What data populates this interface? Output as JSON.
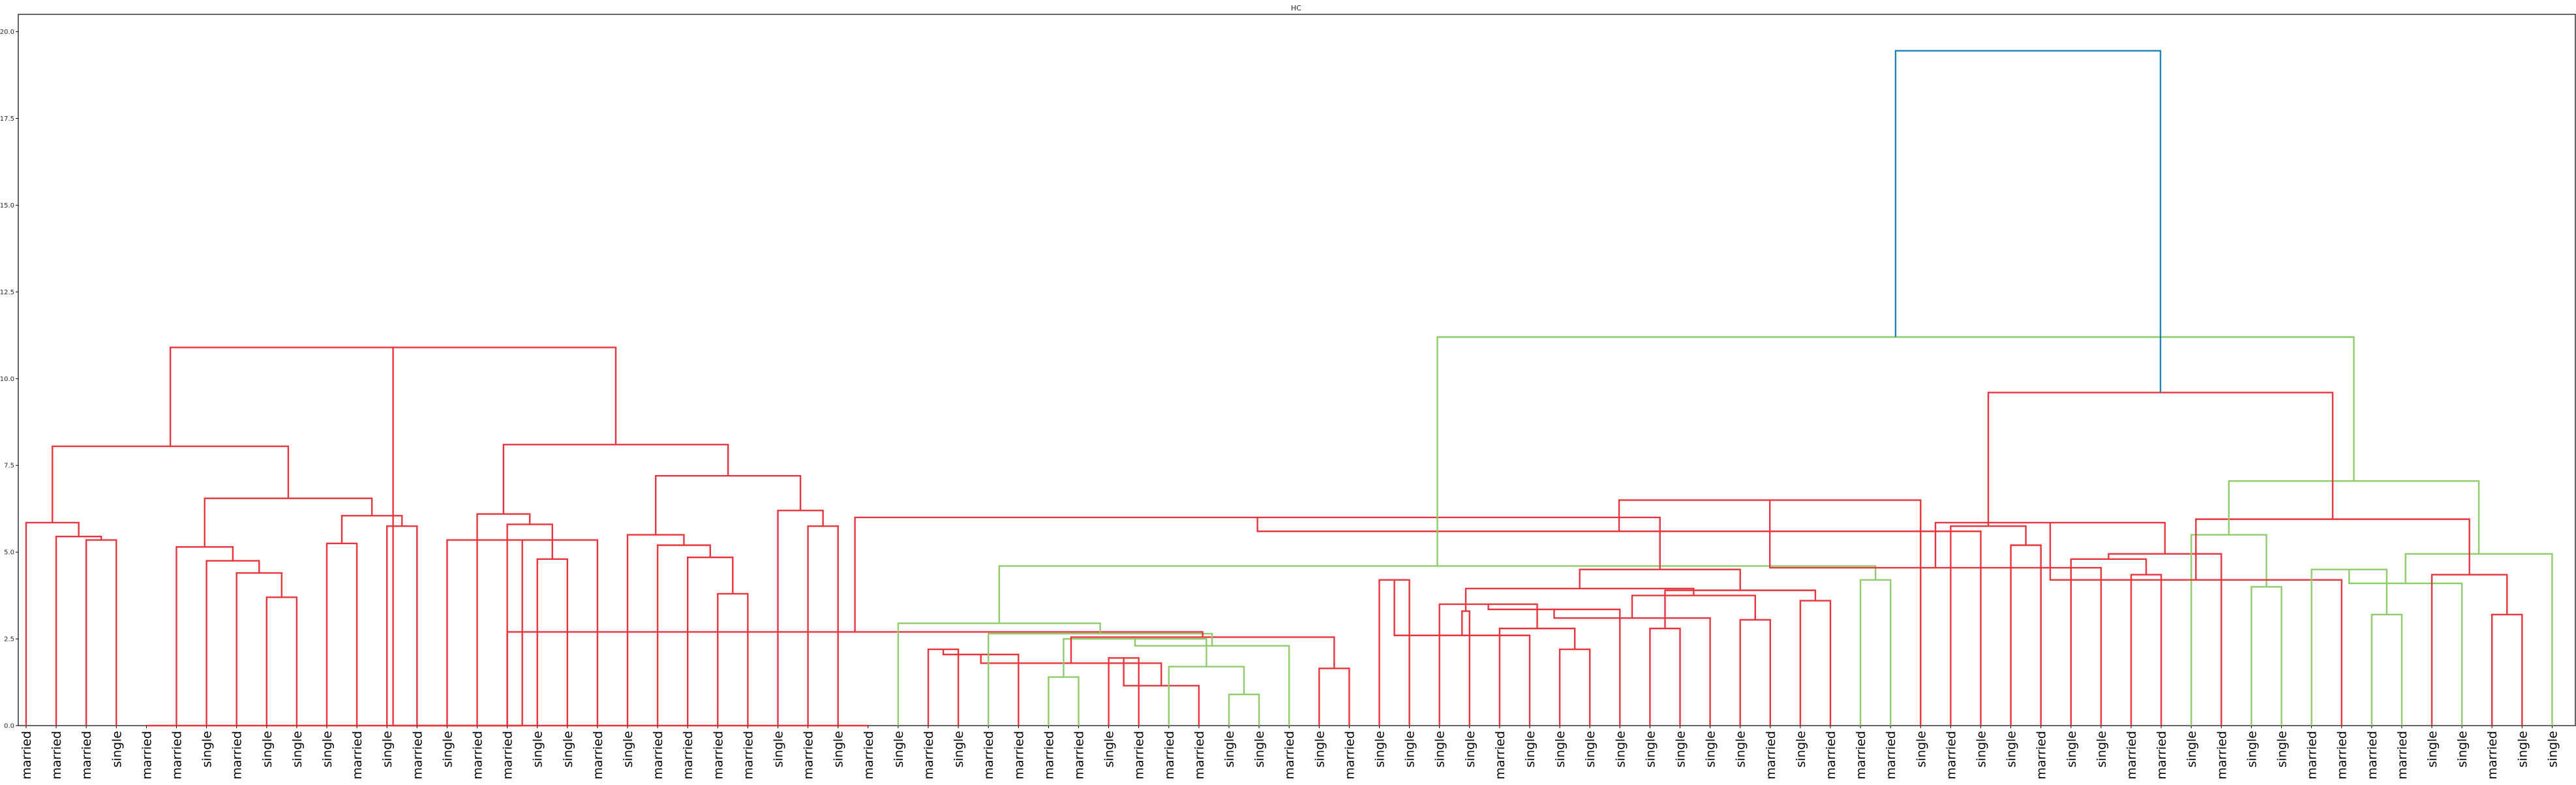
{
  "chart_data": {
    "type": "dendrogram",
    "title": "HC",
    "xlabel": "",
    "ylabel": "",
    "ylim": [
      0,
      20.5
    ],
    "yticks": [
      "0.0",
      "2.5",
      "5.0",
      "7.5",
      "10.0",
      "12.5",
      "15.0",
      "17.5",
      "20.0"
    ],
    "ytick_values": [
      0,
      2.5,
      5,
      7.5,
      10,
      12.5,
      15,
      17.5,
      20
    ],
    "grid": false,
    "leaf_labels": [
      "married",
      "married",
      "married",
      "single",
      "married",
      "married",
      "single",
      "married",
      "single",
      "single",
      "single",
      "married",
      "single",
      "married",
      "single",
      "married",
      "married",
      "single",
      "single",
      "married",
      "single",
      "married",
      "married",
      "married",
      "married",
      "single",
      "married",
      "single",
      "married",
      "single",
      "married",
      "single",
      "married",
      "married",
      "married",
      "married",
      "single",
      "married",
      "married",
      "married",
      "single",
      "single",
      "married",
      "single",
      "married",
      "single",
      "single",
      "single",
      "single",
      "married",
      "single",
      "single",
      "single",
      "single",
      "single",
      "single",
      "single",
      "single",
      "married",
      "single",
      "married",
      "married",
      "married",
      "single",
      "married",
      "single",
      "single",
      "married",
      "single",
      "single",
      "married",
      "married",
      "single",
      "married",
      "single",
      "single",
      "married",
      "married",
      "married",
      "married",
      "single",
      "single",
      "married",
      "single",
      "single"
    ],
    "colors": {
      "cluster_1": "#8fcc6b",
      "cluster_2": "#e8343c",
      "root": "#1f84b8"
    },
    "merges": [
      {
        "a": 2,
        "b": 3,
        "height": 5.35
      },
      {
        "a": 1,
        "b": 85,
        "height": 5.45
      },
      {
        "a": 0,
        "b": 86,
        "height": 5.85
      },
      {
        "a": 8,
        "b": 9,
        "height": 3.7
      },
      {
        "a": 7,
        "b": 88,
        "height": 4.4
      },
      {
        "a": 6,
        "b": 89,
        "height": 4.75
      },
      {
        "a": 5,
        "b": 90,
        "height": 5.15
      },
      {
        "a": 10,
        "b": 11,
        "height": 5.25
      },
      {
        "a": 12,
        "b": 13,
        "height": 5.75
      },
      {
        "a": 92,
        "b": 93,
        "height": 6.05
      },
      {
        "a": 91,
        "b": 94,
        "height": 6.55
      },
      {
        "a": 87,
        "b": 95,
        "height": 8.05
      },
      {
        "a": 17,
        "b": 18,
        "height": 4.8
      },
      {
        "a": 16,
        "b": 97,
        "height": 5.8
      },
      {
        "a": 15,
        "b": 98,
        "height": 6.1
      },
      {
        "a": 23,
        "b": 24,
        "height": 3.8
      },
      {
        "a": 22,
        "b": 100,
        "height": 4.85
      },
      {
        "a": 21,
        "b": 101,
        "height": 5.2
      },
      {
        "a": 20,
        "b": 102,
        "height": 5.5
      },
      {
        "a": 26,
        "b": 27,
        "height": 5.75
      },
      {
        "a": 25,
        "b": 104,
        "height": 6.2
      },
      {
        "a": 103,
        "b": 105,
        "height": 7.2
      },
      {
        "a": 99,
        "b": 106,
        "height": 8.1
      },
      {
        "a": 96,
        "b": 107,
        "height": 10.9
      },
      {
        "a": 14,
        "b": 19,
        "height": 5.35
      },
      {
        "a": 4,
        "b": 28,
        "height": 0.0
      },
      {
        "a": 30,
        "b": 31,
        "height": 2.2
      },
      {
        "a": 34,
        "b": 35,
        "height": 1.4
      },
      {
        "a": 33,
        "b": 111,
        "height": 2.05
      },
      {
        "a": 36,
        "b": 37,
        "height": 1.95
      },
      {
        "a": 40,
        "b": 41,
        "height": 0.9
      },
      {
        "a": 39,
        "b": 114,
        "height": 1.15
      },
      {
        "a": 38,
        "b": 115,
        "height": 1.7
      },
      {
        "a": 113,
        "b": 116,
        "height": 1.8
      },
      {
        "a": 112,
        "b": 117,
        "height": 2.5
      },
      {
        "a": 43,
        "b": 44,
        "height": 1.65
      },
      {
        "a": 42,
        "b": 119,
        "height": 2.3
      },
      {
        "a": 118,
        "b": 120,
        "height": 2.55
      },
      {
        "a": 32,
        "b": 121,
        "height": 2.65
      },
      {
        "a": 110,
        "b": 122,
        "height": 2.7
      },
      {
        "a": 29,
        "b": 123,
        "height": 2.95
      },
      {
        "a": 45,
        "b": 46,
        "height": 4.2
      },
      {
        "a": 51,
        "b": 52,
        "height": 2.2
      },
      {
        "a": 50,
        "b": 126,
        "height": 2.6
      },
      {
        "a": 49,
        "b": 127,
        "height": 2.8
      },
      {
        "a": 48,
        "b": 128,
        "height": 3.3
      },
      {
        "a": 47,
        "b": 129,
        "height": 3.5
      },
      {
        "a": 54,
        "b": 55,
        "height": 2.8
      },
      {
        "a": 53,
        "b": 131,
        "height": 3.35
      },
      {
        "a": 57,
        "b": 58,
        "height": 3.05
      },
      {
        "a": 56,
        "b": 133,
        "height": 3.1
      },
      {
        "a": 59,
        "b": 60,
        "height": 3.6
      },
      {
        "a": 134,
        "b": 135,
        "height": 3.75
      },
      {
        "a": 132,
        "b": 136,
        "height": 3.9
      },
      {
        "a": 130,
        "b": 137,
        "height": 3.95
      },
      {
        "a": 61,
        "b": 62,
        "height": 4.2
      },
      {
        "a": 138,
        "b": 139,
        "height": 4.5
      },
      {
        "a": 125,
        "b": 140,
        "height": 4.6
      },
      {
        "a": 124,
        "b": 141,
        "height": 6.0
      },
      {
        "a": 66,
        "b": 67,
        "height": 5.2
      },
      {
        "a": 65,
        "b": 143,
        "height": 5.6
      },
      {
        "a": 64,
        "b": 144,
        "height": 5.75
      },
      {
        "a": 63,
        "b": 145,
        "height": 6.5
      },
      {
        "a": 70,
        "b": 71,
        "height": 4.35
      },
      {
        "a": 69,
        "b": 147,
        "height": 4.55
      },
      {
        "a": 68,
        "b": 148,
        "height": 4.8
      },
      {
        "a": 74,
        "b": 75,
        "height": 4.0
      },
      {
        "a": 73,
        "b": 150,
        "height": 4.95
      },
      {
        "a": 72,
        "b": 151,
        "height": 5.5
      },
      {
        "a": 149,
        "b": 152,
        "height": 5.85
      },
      {
        "a": 78,
        "b": 79,
        "height": 3.2
      },
      {
        "a": 77,
        "b": 154,
        "height": 4.2
      },
      {
        "a": 76,
        "b": 155,
        "height": 4.5
      },
      {
        "a": 82,
        "b": 83,
        "height": 3.2
      },
      {
        "a": 81,
        "b": 157,
        "height": 4.1
      },
      {
        "a": 80,
        "b": 158,
        "height": 4.35
      },
      {
        "a": 84,
        "b": 159,
        "height": 4.95
      },
      {
        "a": 156,
        "b": 160,
        "height": 5.95
      },
      {
        "a": 153,
        "b": 161,
        "height": 7.05
      },
      {
        "a": 146,
        "b": 162,
        "height": 9.6
      },
      {
        "a": 142,
        "b": 163,
        "height": 11.2
      },
      {
        "a": 108,
        "b": 109,
        "height": 0.0
      },
      {
        "a": 165,
        "b": 164,
        "height": 19.45
      }
    ]
  }
}
